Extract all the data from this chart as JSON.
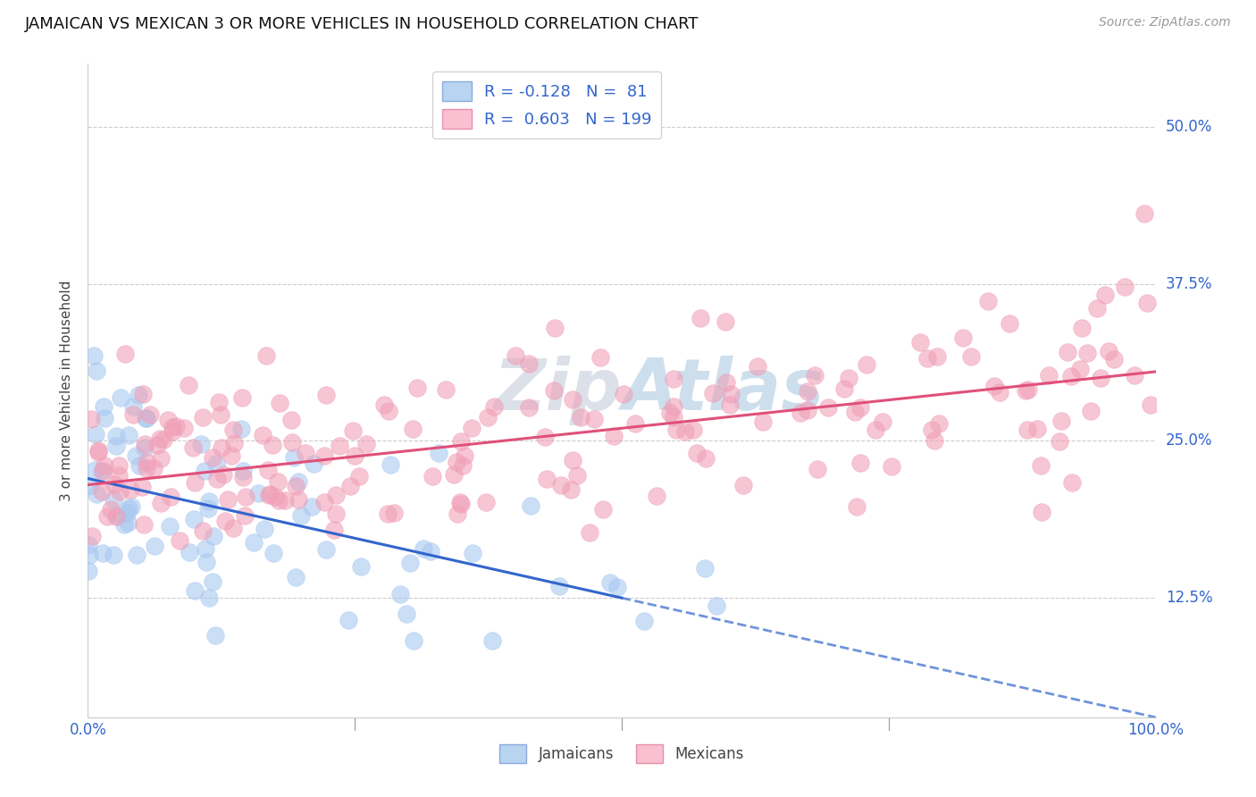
{
  "title": "JAMAICAN VS MEXICAN 3 OR MORE VEHICLES IN HOUSEHOLD CORRELATION CHART",
  "source_text": "Source: ZipAtlas.com",
  "ylabel": "3 or more Vehicles in Household",
  "watermark": "ZipAtlas",
  "xlim": [
    0,
    100
  ],
  "ylim": [
    3,
    55
  ],
  "yticks": [
    12.5,
    25.0,
    37.5,
    50.0
  ],
  "ytick_labels": [
    "12.5%",
    "25.0%",
    "37.5%",
    "50.0%"
  ],
  "jamaican_color": "#a8c8f0",
  "mexican_color": "#f0a0b8",
  "jamaican_line_color": "#3366cc",
  "mexican_line_color": "#e0507a",
  "jamaican_R": -0.128,
  "jamaican_N": 81,
  "mexican_R": 0.603,
  "mexican_N": 199,
  "legend_label_1": "Jamaicans",
  "legend_label_2": "Mexicans",
  "title_color": "#111111",
  "grid_color": "#cccccc",
  "background_color": "#ffffff",
  "jam_solid_end": 50,
  "mex_intercept": 21.5,
  "mex_slope": 0.09,
  "jam_intercept": 22.0,
  "jam_slope": -0.19
}
